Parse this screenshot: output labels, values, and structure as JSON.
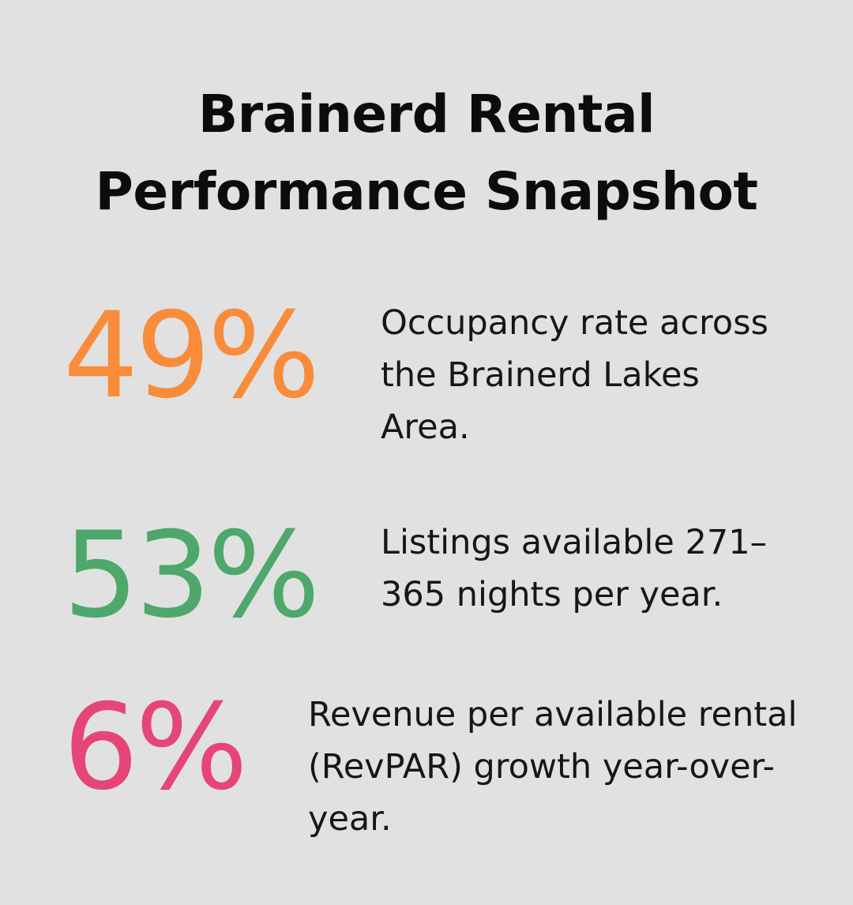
{
  "title_line1": "Brainerd Rental",
  "title_line2": "Performance Snapshot",
  "stats": [
    {
      "value": "49%",
      "color": "#f98c3a",
      "desc_lines": [
        "Occupancy rate across",
        "the Brainerd Lakes",
        "Area."
      ]
    },
    {
      "value": "53%",
      "color": "#4ea76b",
      "desc_lines": [
        "Listings available 271–",
        "365 nights per year."
      ]
    },
    {
      "value": "6%",
      "color": "#e54677",
      "desc_lines": [
        "Revenue per available rental",
        "(RevPAR) growth year-over-",
        "year."
      ]
    }
  ]
}
